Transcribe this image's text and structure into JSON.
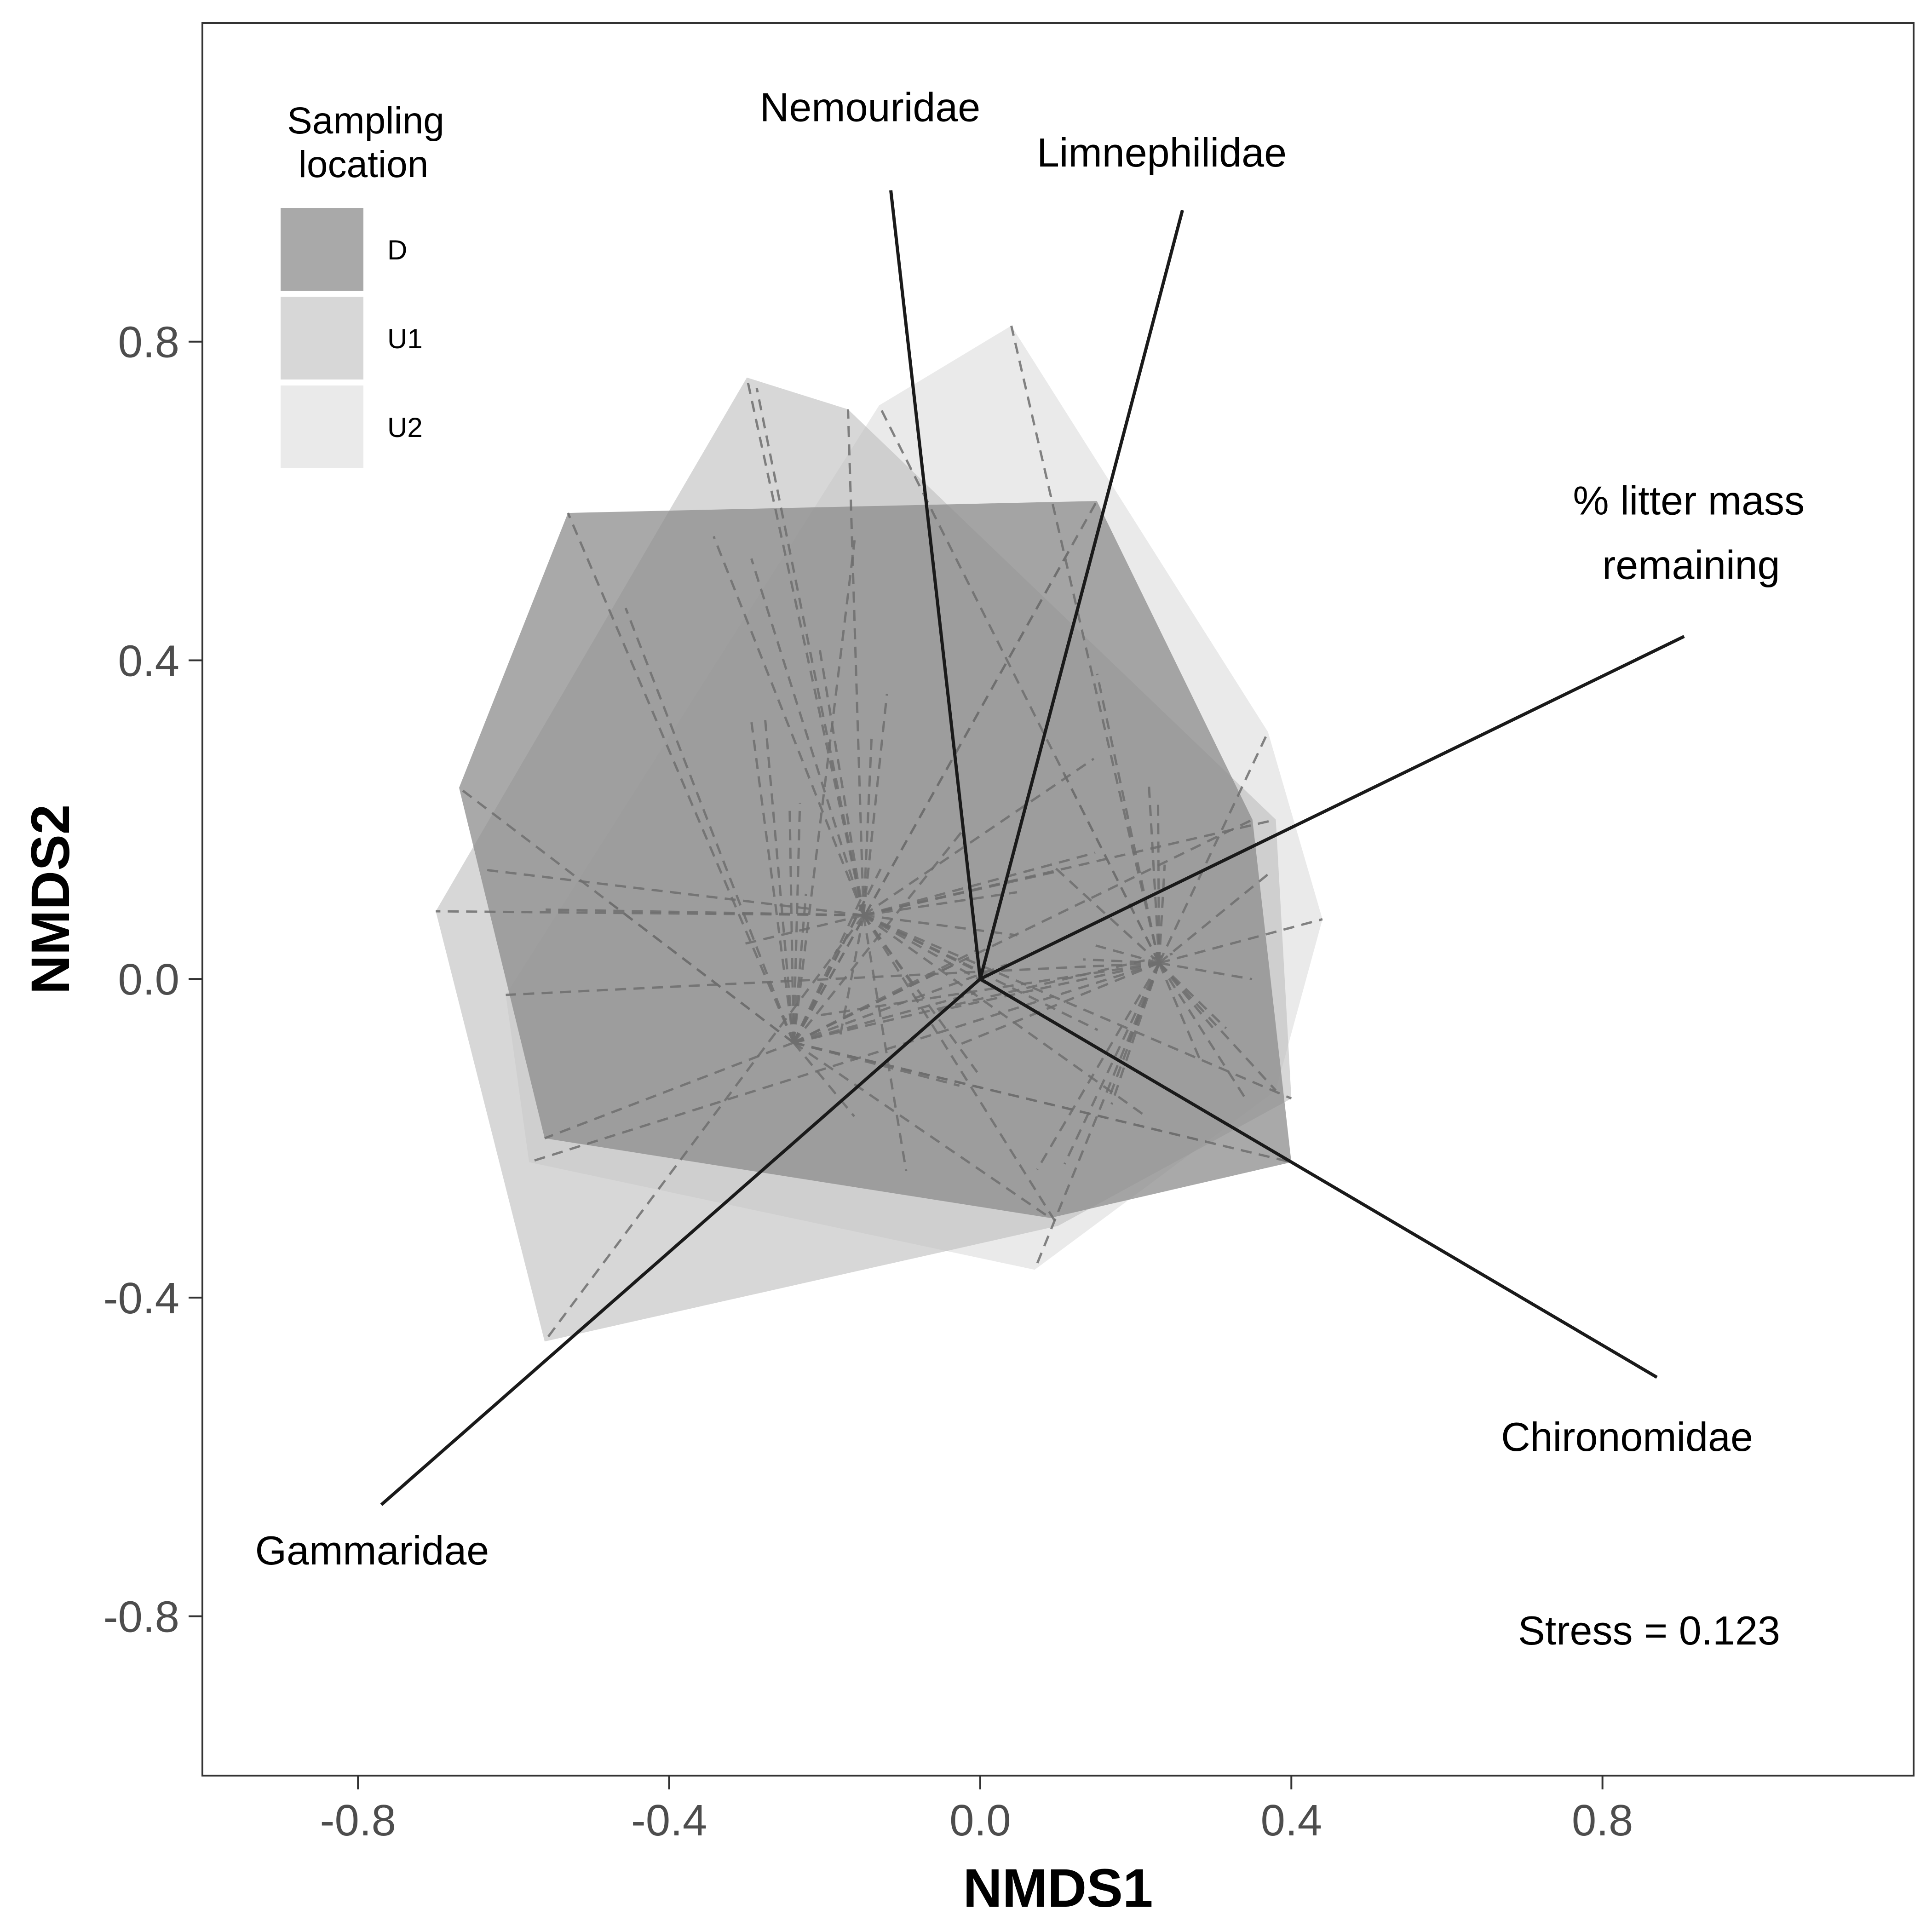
{
  "chart_data": {
    "type": "scatter",
    "subtype": "nmds-ordination",
    "title": "",
    "xlabel": "NMDS1",
    "ylabel": "NMDS2",
    "xlim": [
      -1.0,
      1.2
    ],
    "ylim": [
      -1.0,
      1.2
    ],
    "x_ticks": [
      -0.8,
      -0.4,
      0.0,
      0.4,
      0.8
    ],
    "y_ticks": [
      -0.8,
      -0.4,
      0.0,
      0.4,
      0.8
    ],
    "x_tick_labels": [
      "-0.8",
      "-0.4",
      "0.0",
      "0.4",
      "0.8"
    ],
    "y_tick_labels": [
      "-0.8",
      "-0.4",
      "0.0",
      "0.4",
      "0.8"
    ],
    "grid": false,
    "legend": {
      "title_line1": "Sampling",
      "title_line2": "location",
      "placement": "top-left",
      "entries": [
        {
          "label": "D",
          "color": "#8c8c8c",
          "opacity": 0.75
        },
        {
          "label": "U1",
          "color": "#bdbdbd",
          "opacity": 0.6
        },
        {
          "label": "U2",
          "color": "#d9d9d9",
          "opacity": 0.55
        }
      ]
    },
    "hulls": [
      {
        "name": "U2",
        "color": "#d9d9d9",
        "opacity": 0.55,
        "points": [
          [
            0.04,
            0.82
          ],
          [
            0.37,
            0.31
          ],
          [
            0.44,
            0.075
          ],
          [
            0.38,
            -0.14
          ],
          [
            0.07,
            -0.365
          ],
          [
            -0.58,
            -0.23
          ],
          [
            -0.61,
            -0.02
          ],
          [
            -0.13,
            0.72
          ]
        ]
      },
      {
        "name": "U1",
        "color": "#bdbdbd",
        "opacity": 0.6,
        "points": [
          [
            -0.3,
            0.755
          ],
          [
            -0.17,
            0.715
          ],
          [
            0.38,
            0.2
          ],
          [
            0.4,
            -0.15
          ],
          [
            0.1,
            -0.31
          ],
          [
            -0.56,
            -0.455
          ],
          [
            -0.7,
            0.085
          ]
        ]
      },
      {
        "name": "D",
        "color": "#8c8c8c",
        "opacity": 0.75,
        "points": [
          [
            -0.53,
            0.585
          ],
          [
            0.15,
            0.6
          ],
          [
            0.35,
            0.2
          ],
          [
            0.4,
            -0.23
          ],
          [
            0.09,
            -0.3
          ],
          [
            -0.56,
            -0.2
          ],
          [
            -0.67,
            0.24
          ]
        ]
      }
    ],
    "spider_centers": [
      {
        "name": "D",
        "center": [
          -0.24,
          -0.08
        ]
      },
      {
        "name": "U1",
        "center": [
          -0.15,
          0.08
        ]
      },
      {
        "name": "U2",
        "center": [
          0.23,
          0.02
        ]
      }
    ],
    "vectors": [
      {
        "label": "Nemouridae",
        "x": -0.115,
        "y": 0.99
      },
      {
        "label": "Limnephilidae",
        "x": 0.26,
        "y": 0.965
      },
      {
        "label": "% litter mass remaining",
        "label_line1": "% litter mass",
        "label_line2": "remaining",
        "x": 0.905,
        "y": 0.43
      },
      {
        "label": "Chironomidae",
        "x": 0.87,
        "y": -0.5
      },
      {
        "label": "Gammaridae",
        "x": -0.77,
        "y": -0.66
      }
    ],
    "annotation": "Stress = 0.123",
    "colors": {
      "axis": "#333333",
      "tick_label": "#4d4d4d",
      "vector": "#1a1a1a",
      "spider": "#6e6e6e"
    }
  }
}
